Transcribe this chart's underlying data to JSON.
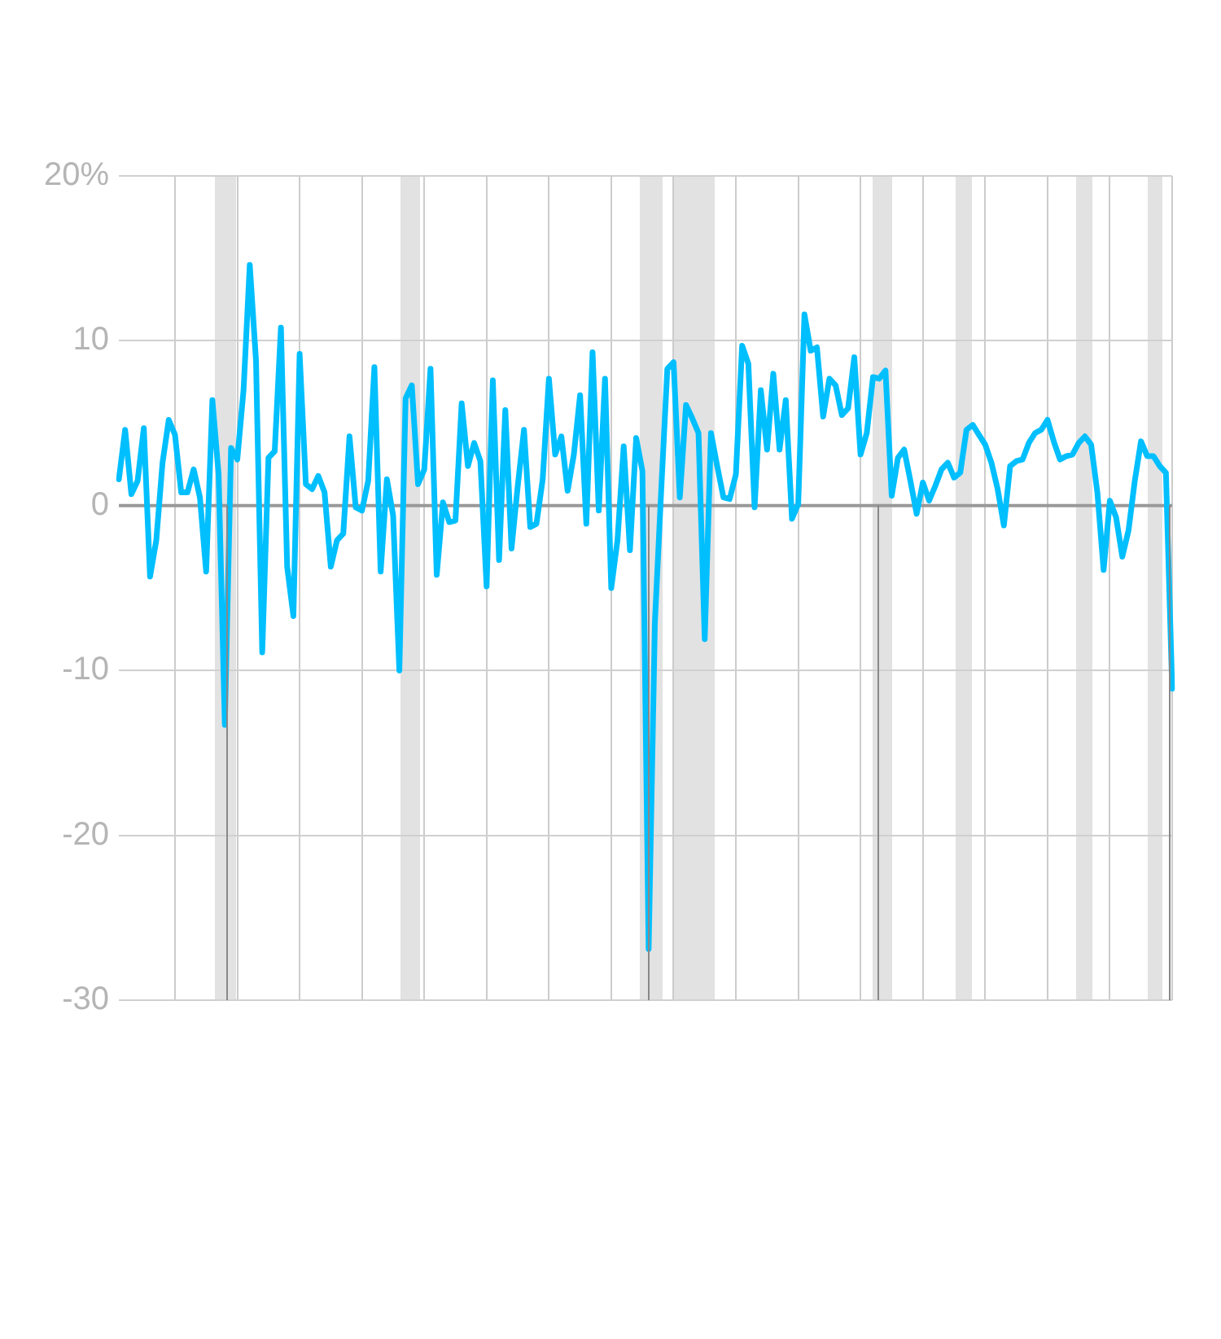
{
  "chart_data": {
    "type": "line",
    "color": "#00bfff",
    "categories": [
      null,
      null,
      null,
      null,
      null,
      null,
      null,
      null,
      null,
      null,
      null,
      null,
      null,
      null,
      null,
      null,
      null,
      null,
      null,
      null,
      null,
      null,
      null,
      null,
      null,
      null,
      null,
      null,
      null,
      null,
      null,
      null,
      null,
      null,
      null,
      null,
      null,
      null,
      null,
      null,
      null,
      null,
      null,
      null,
      null,
      null,
      null,
      null,
      null,
      null,
      null,
      null,
      null,
      null,
      null,
      null,
      null,
      null,
      null,
      null,
      null,
      null,
      null,
      null,
      null,
      null,
      null,
      null,
      null,
      null,
      null,
      null,
      null,
      null,
      null,
      null,
      null,
      null,
      null,
      null,
      null,
      null,
      null,
      null,
      null,
      null,
      null,
      null,
      null,
      null,
      null,
      null,
      null,
      null,
      null,
      null,
      null,
      null,
      null,
      null,
      null,
      null,
      null,
      null,
      null,
      null,
      null,
      null,
      null,
      null,
      null,
      null,
      null,
      null,
      null,
      null,
      null,
      null,
      null,
      null,
      null,
      null,
      null,
      null,
      null,
      null,
      null,
      null,
      null,
      null,
      null,
      null,
      null,
      null,
      null,
      null,
      null,
      null,
      null,
      null,
      null,
      null,
      null,
      null,
      null,
      null,
      null,
      null,
      null,
      null,
      null,
      null,
      null,
      null,
      null,
      null,
      null,
      null,
      null,
      null,
      null,
      null,
      null,
      null,
      null,
      null,
      null,
      null,
      null,
      null
    ],
    "values": [
      1.6,
      4.6,
      0.7,
      1.5,
      4.7,
      -4.3,
      -2.1,
      2.6,
      5.2,
      4.3,
      0.8,
      0.8,
      2.2,
      0.5,
      -4.0,
      6.4,
      1.9,
      -13.3,
      3.5,
      2.8,
      7.0,
      14.6,
      8.8,
      -8.9,
      2.9,
      3.3,
      10.8,
      -3.7,
      -6.7,
      9.2,
      1.3,
      1.0,
      1.8,
      0.8,
      -3.7,
      -2.1,
      -1.7,
      4.2,
      -0.1,
      -0.3,
      1.5,
      8.4,
      -4.0,
      1.6,
      -0.6,
      -10.0,
      6.5,
      7.3,
      1.3,
      2.2,
      8.3,
      -4.2,
      0.2,
      -1.0,
      -0.9,
      6.2,
      2.4,
      3.8,
      2.7,
      -4.9,
      7.6,
      -3.3,
      5.8,
      -2.6,
      1.2,
      4.6,
      -1.3,
      -1.1,
      1.6,
      7.7,
      3.1,
      4.2,
      0.9,
      3.1,
      6.7,
      -1.1,
      9.3,
      -0.3,
      7.7,
      -5.0,
      -2.1,
      3.6,
      -2.7,
      4.1,
      2.1,
      -26.9,
      -7.1,
      0.8,
      8.3,
      8.7,
      0.5,
      6.1,
      5.3,
      4.4,
      -8.1,
      4.4,
      2.4,
      0.5,
      0.4,
      1.9,
      9.7,
      8.6,
      -0.1,
      7.0,
      3.4,
      8.0,
      3.4,
      6.4,
      -0.8,
      0.1,
      11.6,
      9.4,
      9.6,
      5.4,
      7.7,
      7.3,
      5.5,
      5.9,
      9.0,
      3.1,
      4.4,
      7.8,
      7.7,
      8.2,
      0.6,
      2.9,
      3.4,
      1.5,
      -0.5,
      1.4,
      0.3,
      1.2,
      2.2,
      2.6,
      1.7,
      2.0,
      4.6,
      4.9,
      4.3,
      3.7,
      2.6,
      1.0,
      -1.2,
      2.4,
      2.7,
      2.8,
      3.8,
      4.4,
      4.6,
      5.2,
      3.9,
      2.8,
      3.0,
      3.1,
      3.8,
      4.2,
      3.7,
      0.8,
      -3.9,
      0.3,
      -0.7,
      -3.1,
      -1.5,
      1.5,
      3.9,
      3.0,
      3.0,
      2.4,
      2.0,
      -11.1
    ],
    "ylim": [
      -30,
      20
    ],
    "yticks": [
      -30,
      -20,
      -10,
      0,
      10,
      {
        "value": 20,
        "label": "20%"
      }
    ],
    "tick_labels": "y",
    "grid": true,
    "marker": "none",
    "line_style": "solid"
  }
}
